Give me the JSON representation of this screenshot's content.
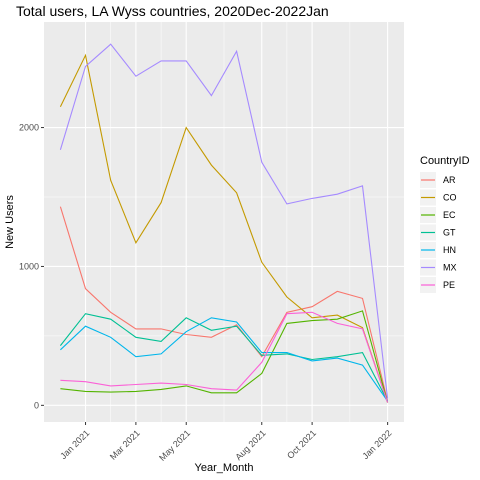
{
  "chart_data": {
    "type": "line",
    "title": "Total users, LA Wyss countries, 2020Dec-2022Jan",
    "xlabel": "Year_Month",
    "ylabel": "New Users",
    "x": [
      "2020-12",
      "2021-01",
      "2021-02",
      "2021-03",
      "2021-04",
      "2021-05",
      "2021-06",
      "2021-07",
      "2021-08",
      "2021-09",
      "2021-10",
      "2021-11",
      "2021-12",
      "2022-01"
    ],
    "x_ticks": [
      {
        "x": "2021-01",
        "label": "Jan 2021"
      },
      {
        "x": "2021-03",
        "label": "Mar 2021"
      },
      {
        "x": "2021-05",
        "label": "May 2021"
      },
      {
        "x": "2021-08",
        "label": "Aug 2021"
      },
      {
        "x": "2021-10",
        "label": "Oct 2021"
      },
      {
        "x": "2022-01",
        "label": "Jan 2022"
      }
    ],
    "y_ticks": [
      0,
      1000,
      2000
    ],
    "ylim": [
      -120,
      2760
    ],
    "grid": true,
    "legend": {
      "title": "CountryID",
      "placement": "right"
    },
    "series": [
      {
        "name": "AR",
        "color": "#F8766D",
        "values": [
          1430,
          840,
          670,
          550,
          550,
          510,
          490,
          580,
          350,
          670,
          710,
          820,
          770,
          30
        ]
      },
      {
        "name": "CO",
        "color": "#C49A00",
        "values": [
          2150,
          2520,
          1620,
          1170,
          1460,
          2000,
          1730,
          1530,
          1030,
          780,
          630,
          650,
          560,
          20
        ]
      },
      {
        "name": "EC",
        "color": "#53B400",
        "values": [
          120,
          100,
          95,
          100,
          115,
          140,
          90,
          90,
          230,
          590,
          610,
          620,
          680,
          20
        ]
      },
      {
        "name": "GT",
        "color": "#00C094",
        "values": [
          430,
          660,
          620,
          490,
          460,
          630,
          540,
          570,
          360,
          370,
          330,
          350,
          380,
          30
        ]
      },
      {
        "name": "HN",
        "color": "#00B6EB",
        "values": [
          400,
          570,
          490,
          350,
          370,
          530,
          630,
          600,
          380,
          380,
          320,
          340,
          290,
          30
        ]
      },
      {
        "name": "MX",
        "color": "#A58AFF",
        "values": [
          1840,
          2440,
          2600,
          2370,
          2480,
          2480,
          2230,
          2550,
          1750,
          1450,
          1490,
          1520,
          1580,
          50
        ]
      },
      {
        "name": "PE",
        "color": "#FB61D7",
        "values": [
          180,
          170,
          140,
          150,
          160,
          150,
          120,
          110,
          310,
          660,
          670,
          590,
          550,
          20
        ]
      }
    ]
  }
}
